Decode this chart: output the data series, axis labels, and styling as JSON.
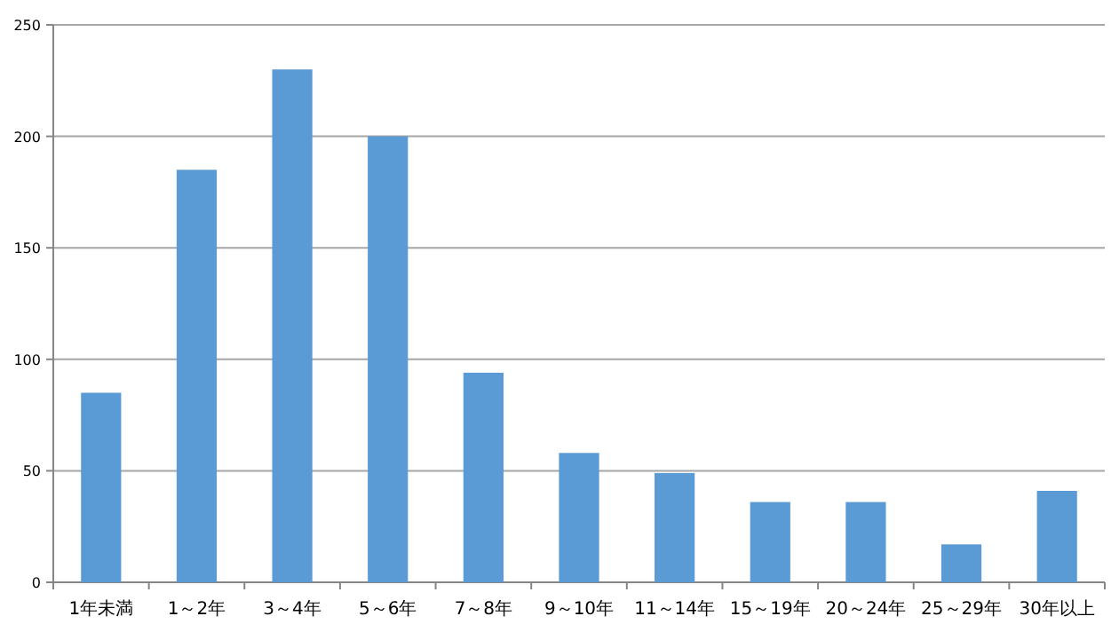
{
  "chart_data": {
    "type": "bar",
    "categories": [
      "1年未満",
      "1～2年",
      "3～4年",
      "5～6年",
      "7～8年",
      "9～10年",
      "11～14年",
      "15～19年",
      "20～24年",
      "25～29年",
      "30年以上"
    ],
    "values": [
      85,
      185,
      230,
      200,
      94,
      58,
      49,
      36,
      36,
      17,
      41
    ],
    "color": "#5b9bd5",
    "ylim": [
      0,
      250
    ],
    "yticks": [
      0,
      50,
      100,
      150,
      200,
      250
    ],
    "grid": "y"
  }
}
